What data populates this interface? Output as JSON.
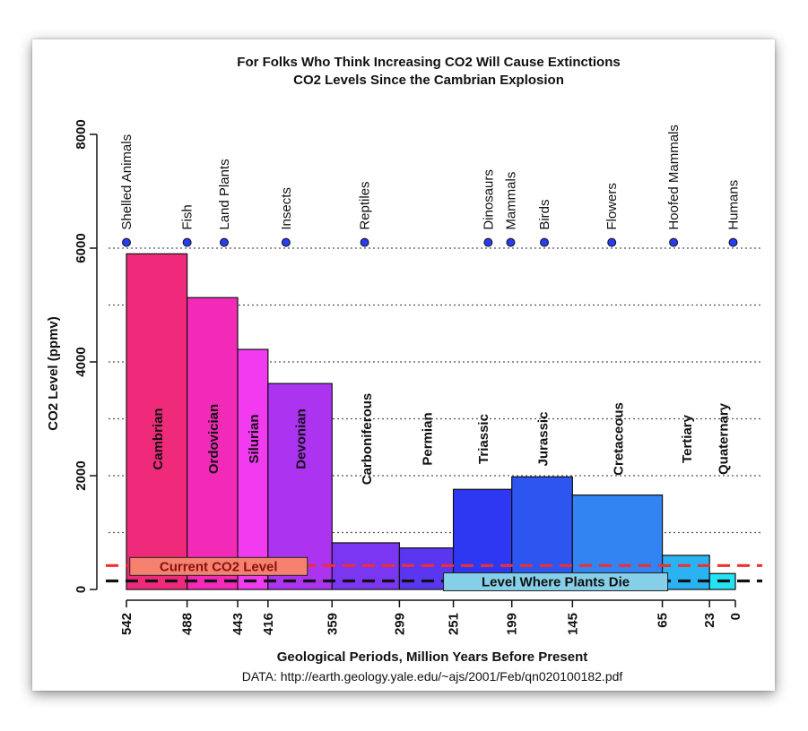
{
  "chart_data": {
    "type": "bar",
    "title": "For Folks Who Think Increasing CO2 Will Cause Extinctions",
    "subtitle": "CO2 Levels Since the Cambrian Explosion",
    "xlabel": "Geological Periods, Million Years Before Present",
    "ylabel": "CO2 Level (ppmv)",
    "source": "DATA: http://earth.geology.yale.edu/~ajs/2001/Feb/qn020100182.pdf",
    "ylim": [
      0,
      8000
    ],
    "y_ticks": [
      0,
      2000,
      4000,
      6000,
      8000
    ],
    "y_gridlines": [
      1000,
      2000,
      3000,
      4000,
      5000,
      6000
    ],
    "x_ticks": [
      {
        "label": "542",
        "value": 542
      },
      {
        "label": "488",
        "value": 488
      },
      {
        "label": "443",
        "value": 443
      },
      {
        "label": "416",
        "value": 416
      },
      {
        "label": "359",
        "value": 359
      },
      {
        "label": "299",
        "value": 299
      },
      {
        "label": "251",
        "value": 251
      },
      {
        "label": "199",
        "value": 199
      },
      {
        "label": "145",
        "value": 145
      },
      {
        "label": "65",
        "value": 65
      },
      {
        "label": "23",
        "value": 23
      },
      {
        "label": "0",
        "value": 0
      }
    ],
    "periods": [
      {
        "name": "Cambrian",
        "start": 542,
        "end": 488,
        "co2": 5900,
        "color": "#f02a7a"
      },
      {
        "name": "Ordovician",
        "start": 488,
        "end": 443,
        "co2": 5130,
        "color": "#f32ab8"
      },
      {
        "name": "Silurian",
        "start": 443,
        "end": 416,
        "co2": 4220,
        "color": "#f23af0"
      },
      {
        "name": "Devonian",
        "start": 416,
        "end": 359,
        "co2": 3620,
        "color": "#ac33f0"
      },
      {
        "name": "Carboniferous",
        "start": 359,
        "end": 299,
        "co2": 820,
        "color": "#7a36f0"
      },
      {
        "name": "Permian",
        "start": 299,
        "end": 251,
        "co2": 730,
        "color": "#5a36f0"
      },
      {
        "name": "Triassic",
        "start": 251,
        "end": 199,
        "co2": 1760,
        "color": "#2e38f2"
      },
      {
        "name": "Jurassic",
        "start": 199,
        "end": 145,
        "co2": 1980,
        "color": "#2d55f0"
      },
      {
        "name": "Cretaceous",
        "start": 145,
        "end": 65,
        "co2": 1660,
        "color": "#3184f2"
      },
      {
        "name": "Tertiary",
        "start": 65,
        "end": 23,
        "co2": 600,
        "color": "#2ab3f2"
      },
      {
        "name": "Quaternary",
        "start": 23,
        "end": 0,
        "co2": 280,
        "color": "#25e2f5"
      }
    ],
    "events": [
      {
        "label": "Shelled Animals",
        "mya": 542
      },
      {
        "label": "Fish",
        "mya": 488
      },
      {
        "label": "Land Plants",
        "mya": 455
      },
      {
        "label": "Insects",
        "mya": 400
      },
      {
        "label": "Reptiles",
        "mya": 330
      },
      {
        "label": "Dinosaurs",
        "mya": 220
      },
      {
        "label": "Mammals",
        "mya": 200
      },
      {
        "label": "Birds",
        "mya": 170
      },
      {
        "label": "Flowers",
        "mya": 110
      },
      {
        "label": "Hoofed Mammals",
        "mya": 55
      },
      {
        "label": "Humans",
        "mya": 2
      }
    ],
    "event_marker_level": 6100,
    "reference_lines": [
      {
        "label": "Current CO2 Level",
        "value": 420,
        "color": "#f03030",
        "label_bg": "#f4826e",
        "label_color": "#8a1010",
        "label_center_mya": 460
      },
      {
        "label": "Level Where Plants Die",
        "value": 150,
        "color": "#111111",
        "label_bg": "#86cfe8",
        "label_color": "#111111",
        "label_center_mya": 160
      }
    ],
    "colors": {
      "marker": "#2a3cf0",
      "grid": "#555555",
      "axis": "#111111"
    }
  }
}
